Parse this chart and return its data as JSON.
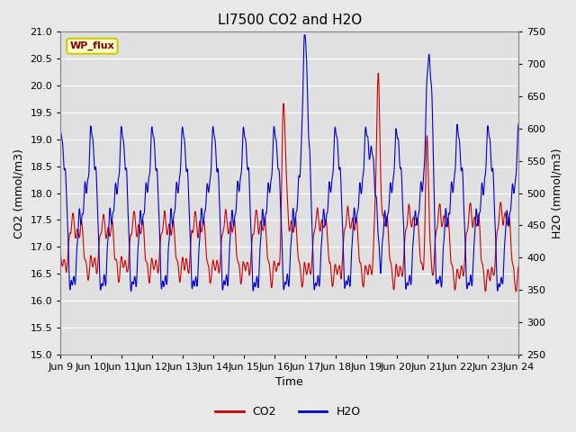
{
  "title": "LI7500 CO2 and H2O",
  "xlabel": "Time",
  "ylabel_left": "CO2 (mmol/m3)",
  "ylabel_right": "H2O (mmol/m3)",
  "ylim_left": [
    15.0,
    21.0
  ],
  "ylim_right": [
    250,
    750
  ],
  "yticks_left": [
    15.0,
    15.5,
    16.0,
    16.5,
    17.0,
    17.5,
    18.0,
    18.5,
    19.0,
    19.5,
    20.0,
    20.5,
    21.0
  ],
  "yticks_right": [
    250,
    300,
    350,
    400,
    450,
    500,
    550,
    600,
    650,
    700,
    750
  ],
  "xtick_labels": [
    "Jun 9",
    "Jun 10",
    "Jun 11",
    "Jun 12",
    "Jun 13",
    "Jun 14",
    "Jun 15",
    "Jun 16",
    "Jun 17",
    "Jun 18",
    "Jun 19",
    "Jun 20",
    "Jun 21",
    "Jun 22",
    "Jun 23",
    "Jun 24"
  ],
  "co2_color": "#cc0000",
  "h2o_color": "#0000cc",
  "fig_bg_color": "#e8e8e8",
  "plot_bg_color": "#e0e0e0",
  "annotation_text": "WP_flux",
  "annotation_bg": "#ffffcc",
  "annotation_border": "#cccc00",
  "annotation_fg": "#880000",
  "legend_co2": "CO2",
  "legend_h2o": "H2O",
  "title_fontsize": 11,
  "axis_label_fontsize": 9,
  "tick_fontsize": 8,
  "n_points": 3600
}
